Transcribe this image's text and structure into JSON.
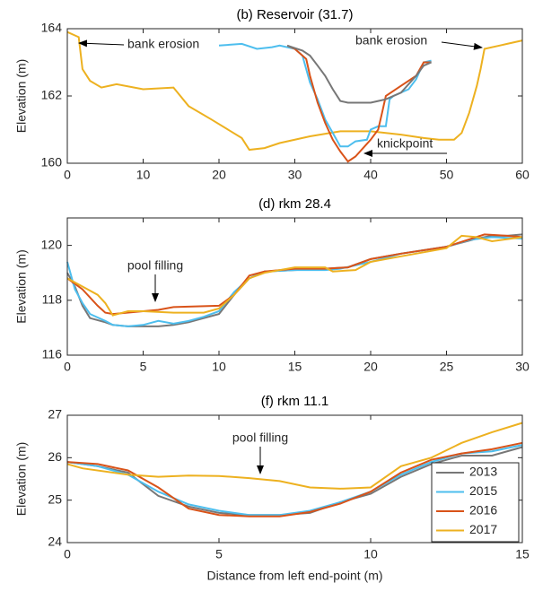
{
  "chart_data": [
    {
      "type": "line",
      "title": "(b) Reservoir (31.7)",
      "ylabel": "Elevation (m)",
      "xlim": [
        0,
        60
      ],
      "xticks": [
        0,
        10,
        20,
        30,
        40,
        50,
        60
      ],
      "ylim": [
        160,
        164
      ],
      "yticks": [
        160,
        162,
        164
      ],
      "annotations": [
        {
          "text": "bank erosion"
        },
        {
          "text": "bank erosion"
        },
        {
          "text": "knickpoint"
        }
      ],
      "series": [
        {
          "color": "#edb120",
          "x": [
            0,
            1.5,
            2,
            3,
            4.5,
            6.5,
            10,
            14,
            16,
            19,
            23,
            24,
            26,
            28,
            32,
            36,
            40,
            44,
            47,
            49,
            51,
            52,
            53,
            54,
            54.5,
            55,
            57,
            58,
            60
          ],
          "values": [
            163.9,
            163.75,
            162.8,
            162.45,
            162.25,
            162.35,
            162.2,
            162.25,
            161.7,
            161.3,
            160.75,
            160.4,
            160.45,
            160.6,
            160.8,
            160.95,
            160.95,
            160.85,
            160.75,
            160.7,
            160.7,
            160.9,
            161.5,
            162.3,
            162.8,
            163.4,
            163.5,
            163.55,
            163.65
          ]
        },
        {
          "color": "#4dbeee",
          "x": [
            20,
            23,
            25,
            27,
            28,
            30,
            31,
            32,
            33,
            34,
            35,
            36,
            37,
            38,
            39.5,
            40,
            41,
            42,
            42.5,
            43,
            45,
            46,
            47,
            48
          ],
          "values": [
            163.5,
            163.55,
            163.4,
            163.45,
            163.5,
            163.4,
            163.2,
            162.4,
            161.9,
            161.3,
            160.9,
            160.5,
            160.5,
            160.65,
            160.7,
            161.0,
            161.1,
            161.1,
            161.9,
            162.0,
            162.2,
            162.5,
            163.0,
            163.05
          ]
        },
        {
          "color": "#d95319",
          "x": [
            29,
            30,
            31,
            31.5,
            32,
            33,
            34,
            35,
            36,
            37,
            38,
            39,
            40,
            41,
            41.5,
            42,
            44,
            46,
            47,
            48
          ],
          "values": [
            163.5,
            163.4,
            163.2,
            163.1,
            162.6,
            161.8,
            161.2,
            160.7,
            160.35,
            160.05,
            160.2,
            160.45,
            160.7,
            161.0,
            161.5,
            162.0,
            162.3,
            162.6,
            163.0,
            163.0
          ]
        },
        {
          "color": "#777777",
          "x": [
            29,
            31,
            32,
            33,
            34,
            35,
            36,
            37,
            38,
            40,
            41,
            42,
            44,
            46,
            47,
            48
          ],
          "values": [
            163.5,
            163.35,
            163.2,
            162.9,
            162.6,
            162.2,
            161.85,
            161.8,
            161.8,
            161.8,
            161.85,
            161.9,
            162.1,
            162.6,
            162.9,
            163.0
          ]
        }
      ]
    },
    {
      "type": "line",
      "title": "(d) rkm 28.4",
      "ylabel": "Elevation (m)",
      "xlim": [
        0,
        30
      ],
      "xticks": [
        0,
        5,
        10,
        15,
        20,
        25,
        30
      ],
      "ylim": [
        116,
        121
      ],
      "yticks": [
        116,
        118,
        120
      ],
      "annotations": [
        {
          "text": "pool filling"
        }
      ],
      "series": [
        {
          "color": "#777777",
          "x": [
            0,
            0.5,
            1,
            1.5,
            2.5,
            3,
            4,
            6,
            7,
            8,
            9,
            10,
            11,
            12,
            13,
            15,
            17,
            18.5,
            20,
            22,
            25,
            26,
            27,
            28,
            29,
            30
          ],
          "values": [
            119.0,
            118.5,
            117.8,
            117.35,
            117.2,
            117.1,
            117.05,
            117.05,
            117.1,
            117.2,
            117.35,
            117.5,
            118.2,
            118.8,
            119.05,
            119.1,
            119.15,
            119.2,
            119.5,
            119.7,
            119.95,
            120.1,
            120.25,
            120.35,
            120.35,
            120.4
          ]
        },
        {
          "color": "#4dbeee",
          "x": [
            0,
            0.5,
            1,
            1.5,
            2.5,
            3,
            4,
            5,
            6,
            7,
            8,
            9,
            10,
            11,
            12,
            13,
            15,
            17,
            18,
            20,
            22,
            25,
            26.5,
            28,
            30
          ],
          "values": [
            119.4,
            118.4,
            117.9,
            117.5,
            117.25,
            117.1,
            117.05,
            117.1,
            117.25,
            117.15,
            117.25,
            117.4,
            117.6,
            118.3,
            118.8,
            119.05,
            119.1,
            119.1,
            119.15,
            119.4,
            119.7,
            119.95,
            120.2,
            120.3,
            120.25
          ]
        },
        {
          "color": "#d95319",
          "x": [
            0,
            1,
            2,
            2.5,
            3,
            5,
            6,
            7,
            10,
            11,
            12,
            13,
            15,
            17,
            18.5,
            20,
            22,
            25,
            27.5,
            29,
            30
          ],
          "values": [
            118.8,
            118.4,
            117.8,
            117.55,
            117.5,
            117.6,
            117.65,
            117.75,
            117.8,
            118.2,
            118.9,
            119.05,
            119.15,
            119.15,
            119.2,
            119.5,
            119.7,
            119.95,
            120.4,
            120.35,
            120.3
          ]
        },
        {
          "color": "#edb120",
          "x": [
            0,
            1,
            2,
            2.5,
            3,
            4,
            5,
            7,
            9,
            10,
            11,
            12,
            13,
            15,
            17,
            17.5,
            19,
            20,
            22,
            25,
            26,
            27,
            28,
            30
          ],
          "values": [
            118.8,
            118.5,
            118.2,
            117.9,
            117.45,
            117.6,
            117.6,
            117.55,
            117.55,
            117.7,
            118.2,
            118.8,
            119.0,
            119.2,
            119.2,
            119.05,
            119.1,
            119.4,
            119.6,
            119.9,
            120.35,
            120.3,
            120.15,
            120.3
          ]
        }
      ]
    },
    {
      "type": "line",
      "title": "(f) rkm 11.1",
      "ylabel": "Elevation (m)",
      "xlabel": "Distance from left end-point (m)",
      "xlim": [
        0,
        15
      ],
      "xticks": [
        0,
        5,
        10,
        15
      ],
      "ylim": [
        24,
        27
      ],
      "yticks": [
        24,
        25,
        26,
        27
      ],
      "annotations": [
        {
          "text": "pool filling"
        }
      ],
      "legend": "lower right",
      "series": [
        {
          "name": "2013",
          "color": "#777777",
          "x": [
            0,
            1,
            2,
            3,
            4,
            5,
            6,
            7,
            8,
            9,
            10,
            11,
            12,
            13,
            14,
            15
          ],
          "values": [
            25.9,
            25.8,
            25.65,
            25.1,
            24.85,
            24.7,
            24.65,
            24.65,
            24.7,
            24.95,
            25.15,
            25.55,
            25.85,
            26.05,
            26.05,
            26.25
          ]
        },
        {
          "name": "2015",
          "color": "#4dbeee",
          "x": [
            0,
            1,
            2,
            3,
            4,
            5,
            6,
            7,
            8,
            9,
            10,
            11,
            12,
            13,
            14,
            15
          ],
          "values": [
            25.9,
            25.8,
            25.6,
            25.2,
            24.9,
            24.75,
            24.65,
            24.65,
            24.75,
            24.95,
            25.2,
            25.6,
            25.9,
            26.1,
            26.15,
            26.3
          ]
        },
        {
          "name": "2016",
          "color": "#d95319",
          "x": [
            0,
            1,
            2,
            3,
            4,
            5,
            6,
            7,
            8,
            9,
            10,
            11,
            12,
            13,
            14,
            15
          ],
          "values": [
            25.9,
            25.85,
            25.7,
            25.3,
            24.8,
            24.65,
            24.62,
            24.62,
            24.72,
            24.92,
            25.2,
            25.65,
            25.95,
            26.1,
            26.2,
            26.35
          ]
        },
        {
          "name": "2017",
          "color": "#edb120",
          "x": [
            0,
            0.5,
            2,
            3,
            4,
            5,
            6,
            7,
            8,
            9,
            10,
            11,
            12,
            13,
            14,
            15
          ],
          "values": [
            25.85,
            25.75,
            25.6,
            25.55,
            25.58,
            25.57,
            25.52,
            25.45,
            25.3,
            25.27,
            25.3,
            25.8,
            26.0,
            26.35,
            26.6,
            26.82
          ]
        }
      ]
    }
  ]
}
